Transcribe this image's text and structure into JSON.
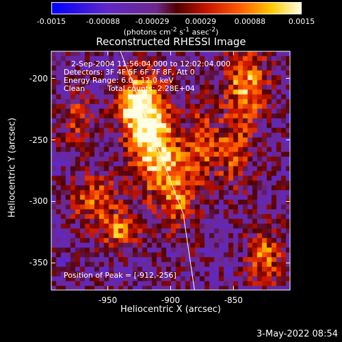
{
  "chart_data": {
    "type": "heatmap",
    "title": "Reconstructed RHESSI Image",
    "xlabel": "Heliocentric X (arcsec)",
    "ylabel": "Heliocentric Y (arcsec)",
    "xlim": [
      -995,
      -805
    ],
    "ylim": [
      -372,
      -178
    ],
    "x_ticks": [
      "-950",
      "-900",
      "-850"
    ],
    "x_tick_values": [
      -950,
      -900,
      -850
    ],
    "y_ticks": [
      "-200",
      "-250",
      "-300",
      "-350"
    ],
    "y_tick_values": [
      -200,
      -250,
      -300,
      -350
    ],
    "colorbar": {
      "min": -0.0015,
      "max": 0.0015,
      "ticks": [
        "-0.0015",
        "-0.00088",
        "-0.00029",
        "0.00029",
        "0.00088",
        "0.0015"
      ],
      "tick_values": [
        -0.0015,
        -0.00088,
        -0.00029,
        0.00029,
        0.00088,
        0.0015
      ],
      "unit_prefix": "(photons cm",
      "unit_sup1": "-2",
      "unit_mid": " s",
      "unit_sup2": "-1",
      "unit_mid2": " asec",
      "unit_sup3": "-2",
      "unit_suffix": ")"
    },
    "annotations": {
      "time_range": "2-Sep-2004 11:56:04.000 to 12:02:04.000",
      "detectors": "Detectors: 3F 4F 5F 6F 7F 8F, Att 0",
      "energy": "Energy Range: 6.0 - 12.0 keV",
      "method": "Clean",
      "counts": "Total counts: 2.28E+04",
      "peak": "Position of Peak = [-912,-256]"
    },
    "limb_line": {
      "x": [
        -940,
        -890,
        -881
      ],
      "y": [
        -178,
        -310,
        -372
      ]
    },
    "sources": [
      {
        "x": -915,
        "y": -247,
        "intensity": 1.0,
        "sx": 12,
        "sy": 28
      },
      {
        "x": -930,
        "y": -220,
        "intensity": 0.75,
        "sx": 10,
        "sy": 18
      },
      {
        "x": -895,
        "y": -290,
        "intensity": 0.6,
        "sx": 12,
        "sy": 25
      },
      {
        "x": -960,
        "y": -300,
        "intensity": 0.55,
        "sx": 14,
        "sy": 14
      },
      {
        "x": -940,
        "y": -325,
        "intensity": 0.6,
        "sx": 10,
        "sy": 10
      },
      {
        "x": -840,
        "y": -205,
        "intensity": 0.7,
        "sx": 12,
        "sy": 20
      },
      {
        "x": -850,
        "y": -260,
        "intensity": 0.5,
        "sx": 12,
        "sy": 20
      },
      {
        "x": -825,
        "y": -345,
        "intensity": 0.6,
        "sx": 10,
        "sy": 16
      },
      {
        "x": -875,
        "y": -250,
        "intensity": 0.45,
        "sx": 8,
        "sy": 22
      },
      {
        "x": -975,
        "y": -235,
        "intensity": 0.4,
        "sx": 10,
        "sy": 16
      }
    ]
  },
  "footer": {
    "date": "3-May-2022 08:54"
  }
}
